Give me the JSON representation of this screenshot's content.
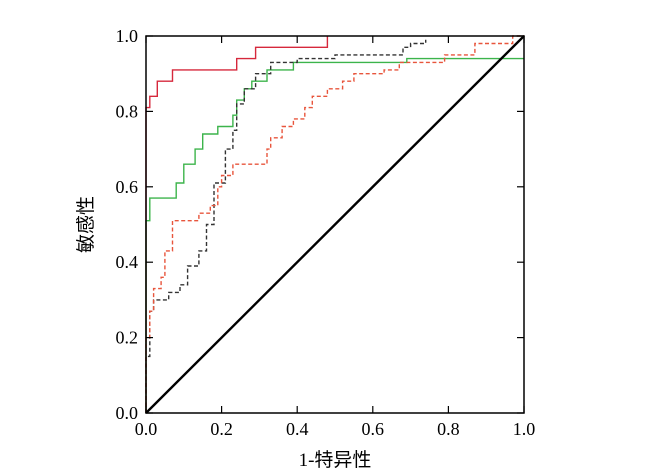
{
  "chart_data": {
    "type": "line",
    "title": "",
    "xlabel": "1-特异性",
    "ylabel": "敏感性",
    "xlim": [
      0,
      1
    ],
    "ylim": [
      0,
      1
    ],
    "xticks": [
      "0.0",
      "0.2",
      "0.4",
      "0.6",
      "0.8",
      "1.0"
    ],
    "yticks": [
      "0.0",
      "0.2",
      "0.4",
      "0.6",
      "0.8",
      "1.0"
    ],
    "grid": false,
    "legend": "none",
    "series": [
      {
        "color": "#d6283c",
        "style": "solid",
        "x": [
          0,
          0,
          0.01,
          0.01,
          0.03,
          0.03,
          0.07,
          0.07,
          0.1,
          0.1,
          0.24,
          0.24,
          0.29,
          0.29,
          0.48,
          0.48
        ],
        "y": [
          0,
          0.81,
          0.81,
          0.84,
          0.84,
          0.88,
          0.88,
          0.91,
          0.91,
          0.91,
          0.91,
          0.94,
          0.94,
          0.97,
          0.97,
          1.0
        ]
      },
      {
        "color": "#3cb44b",
        "style": "solid",
        "x": [
          0,
          0,
          0.01,
          0.01,
          0.08,
          0.08,
          0.1,
          0.1,
          0.13,
          0.13,
          0.15,
          0.15,
          0.19,
          0.19,
          0.23,
          0.23,
          0.24,
          0.24,
          0.26,
          0.26,
          0.28,
          0.28,
          0.32,
          0.32,
          0.39,
          0.39,
          0.5,
          0.5,
          0.69,
          0.69,
          1.0
        ],
        "y": [
          0,
          0.51,
          0.51,
          0.57,
          0.57,
          0.61,
          0.61,
          0.66,
          0.66,
          0.7,
          0.7,
          0.74,
          0.74,
          0.76,
          0.76,
          0.79,
          0.79,
          0.83,
          0.83,
          0.86,
          0.86,
          0.88,
          0.88,
          0.91,
          0.91,
          0.93,
          0.93,
          0.93,
          0.93,
          0.94,
          0.94
        ]
      },
      {
        "color": "#333333",
        "style": "dashed",
        "x": [
          0,
          0,
          0.01,
          0.01,
          0.02,
          0.02,
          0.06,
          0.06,
          0.09,
          0.09,
          0.11,
          0.11,
          0.14,
          0.14,
          0.16,
          0.16,
          0.18,
          0.18,
          0.21,
          0.21,
          0.23,
          0.23,
          0.24,
          0.24,
          0.26,
          0.26,
          0.29,
          0.29,
          0.33,
          0.33,
          0.4,
          0.4,
          0.5,
          0.5,
          0.68,
          0.68,
          0.7,
          0.7,
          0.74,
          0.74
        ],
        "y": [
          0,
          0.15,
          0.15,
          0.27,
          0.27,
          0.3,
          0.3,
          0.32,
          0.32,
          0.34,
          0.34,
          0.39,
          0.39,
          0.43,
          0.43,
          0.5,
          0.5,
          0.61,
          0.61,
          0.7,
          0.7,
          0.75,
          0.75,
          0.82,
          0.82,
          0.86,
          0.86,
          0.9,
          0.9,
          0.93,
          0.93,
          0.94,
          0.94,
          0.95,
          0.95,
          0.97,
          0.97,
          0.98,
          0.98,
          0.99
        ]
      },
      {
        "color": "#e8553c",
        "style": "dashed",
        "x": [
          0,
          0,
          0.01,
          0.01,
          0.02,
          0.02,
          0.04,
          0.04,
          0.05,
          0.05,
          0.07,
          0.07,
          0.14,
          0.14,
          0.17,
          0.17,
          0.19,
          0.19,
          0.2,
          0.2,
          0.23,
          0.23,
          0.32,
          0.32,
          0.33,
          0.33,
          0.36,
          0.36,
          0.39,
          0.39,
          0.42,
          0.42,
          0.44,
          0.44,
          0.48,
          0.48,
          0.52,
          0.52,
          0.55,
          0.55,
          0.63,
          0.63,
          0.67,
          0.67,
          0.79,
          0.79,
          0.87,
          0.87,
          0.97,
          0.97,
          1.0
        ],
        "y": [
          0,
          0.2,
          0.2,
          0.27,
          0.27,
          0.33,
          0.33,
          0.36,
          0.36,
          0.43,
          0.43,
          0.51,
          0.51,
          0.53,
          0.53,
          0.55,
          0.55,
          0.6,
          0.6,
          0.63,
          0.63,
          0.66,
          0.66,
          0.7,
          0.7,
          0.73,
          0.73,
          0.76,
          0.76,
          0.78,
          0.78,
          0.81,
          0.81,
          0.84,
          0.84,
          0.86,
          0.86,
          0.88,
          0.88,
          0.9,
          0.9,
          0.91,
          0.91,
          0.93,
          0.93,
          0.95,
          0.95,
          0.98,
          0.98,
          1.0,
          1.0
        ]
      },
      {
        "color": "#000000",
        "style": "diagonal",
        "x": [
          0,
          1
        ],
        "y": [
          0,
          1
        ]
      }
    ]
  }
}
